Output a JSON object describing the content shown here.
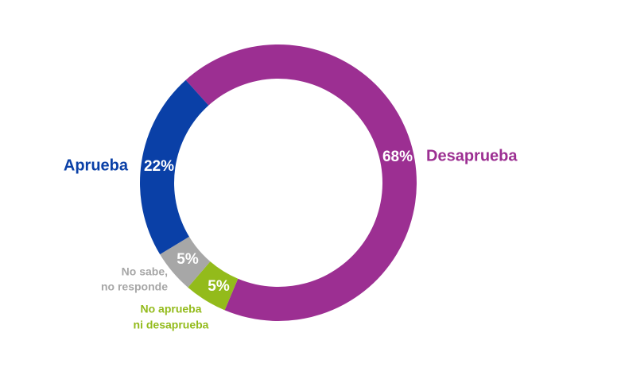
{
  "chart_data": {
    "type": "donut",
    "categories": [
      [
        "Desaprueba"
      ],
      [
        "No aprueba",
        "ni desaprueba"
      ],
      [
        "No sabe,",
        "no responde"
      ],
      [
        "Aprueba"
      ]
    ],
    "values": [
      68,
      5,
      5,
      22
    ],
    "value_labels": [
      "68%",
      "5%",
      "5%",
      "22%"
    ],
    "colors": [
      "#9c2f92",
      "#93bb1b",
      "#a7a7a7",
      "#0a40a7"
    ]
  }
}
